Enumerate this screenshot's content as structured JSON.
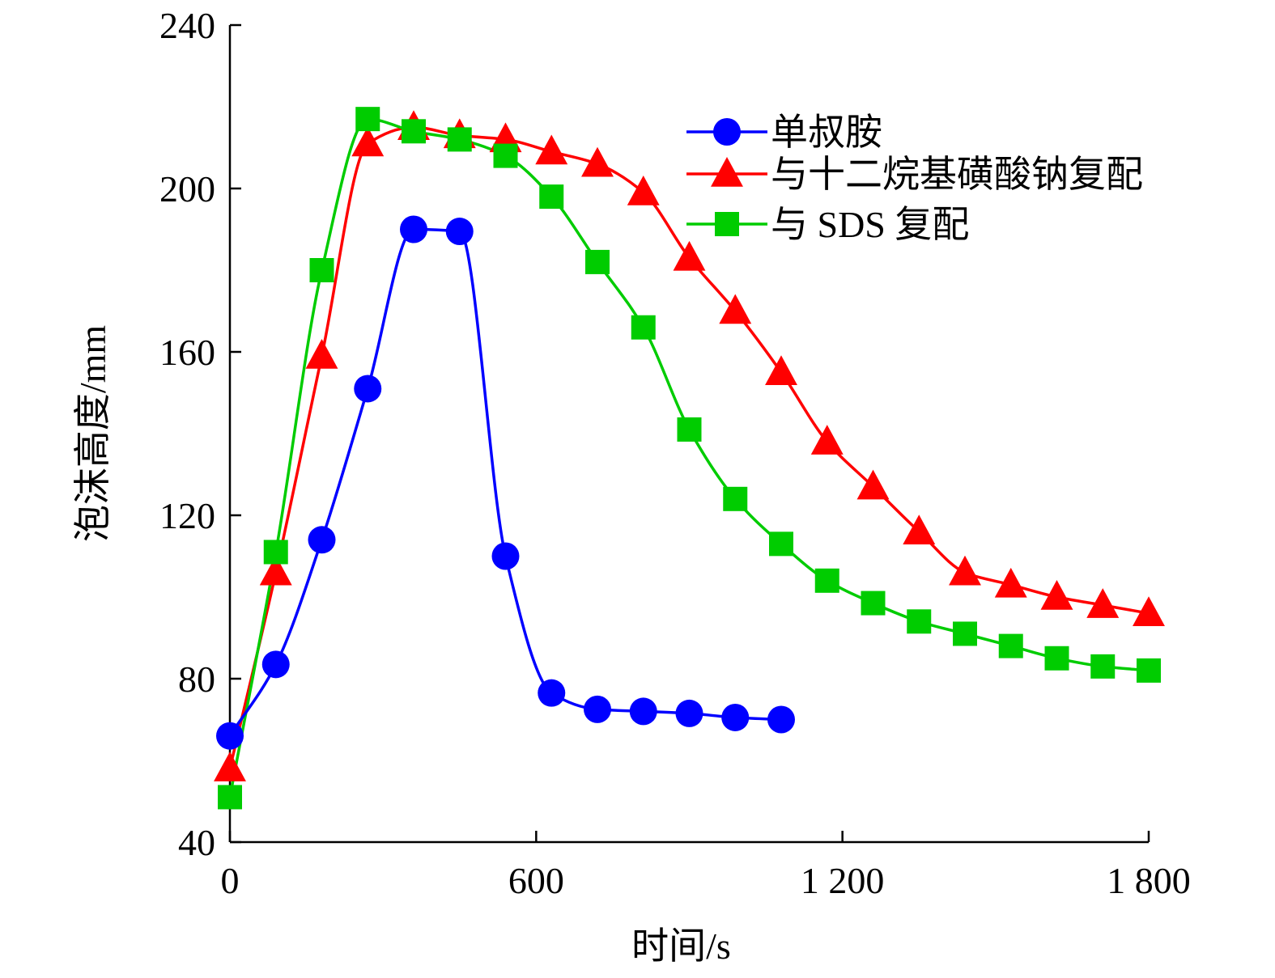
{
  "chart_data": {
    "type": "line",
    "title": "",
    "xlabel": "时间/s",
    "ylabel": "泡沫高度/mm",
    "xlim": [
      0,
      1800
    ],
    "ylim": [
      40,
      240
    ],
    "xticks": [
      0,
      600,
      1200,
      1800
    ],
    "xtick_labels": [
      "0",
      "600",
      "1 200",
      "1 800"
    ],
    "yticks": [
      40,
      80,
      120,
      160,
      200,
      240
    ],
    "ytick_labels": [
      "40",
      "80",
      "120",
      "160",
      "200",
      "240"
    ],
    "grid": false,
    "legend_position": "top-right",
    "series": [
      {
        "name": "单叔胺",
        "color": "#0000ff",
        "marker": "circle",
        "x": [
          0,
          90,
          180,
          270,
          360,
          450,
          540,
          630,
          720,
          810,
          900,
          990,
          1080
        ],
        "y": [
          66,
          83.5,
          114,
          151,
          190,
          189.5,
          110,
          76.5,
          72.5,
          72,
          71.5,
          70.5,
          70
        ]
      },
      {
        "name": "与十二烷基磺酸钠复配",
        "color": "#ff0000",
        "marker": "triangle",
        "x": [
          0,
          90,
          180,
          270,
          360,
          450,
          540,
          630,
          720,
          810,
          900,
          990,
          1080,
          1170,
          1260,
          1350,
          1440,
          1530,
          1620,
          1710,
          1800
        ],
        "y": [
          58,
          106,
          159,
          211,
          215,
          213,
          212,
          209,
          206,
          199,
          183,
          170,
          155,
          138,
          127,
          116,
          106,
          103,
          100,
          98,
          96
        ]
      },
      {
        "name": "与 SDS 复配",
        "color": "#00cc00",
        "marker": "square",
        "x": [
          0,
          90,
          180,
          270,
          360,
          450,
          540,
          630,
          720,
          810,
          900,
          990,
          1080,
          1170,
          1260,
          1350,
          1440,
          1530,
          1620,
          1710,
          1800
        ],
        "y": [
          51,
          111,
          180,
          217,
          214,
          212,
          208,
          198,
          182,
          166,
          141,
          124,
          113,
          104,
          98.5,
          94,
          91,
          88,
          85,
          83,
          82
        ]
      }
    ]
  }
}
